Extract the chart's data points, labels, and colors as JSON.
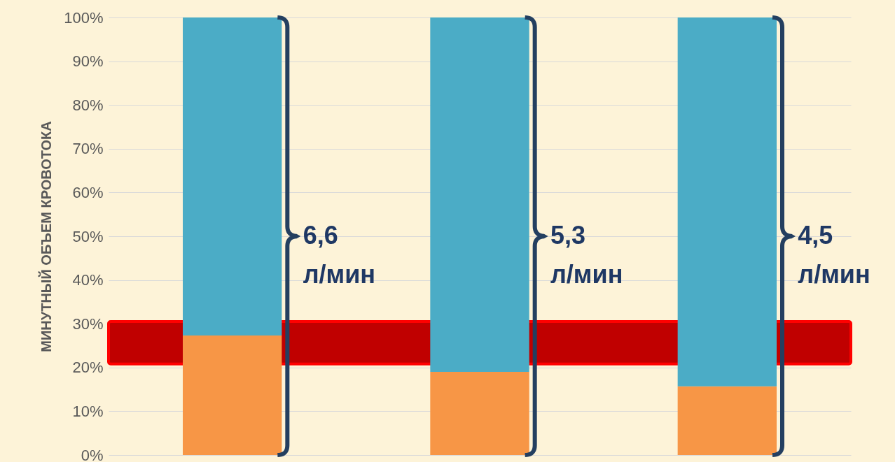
{
  "chart_data": {
    "type": "bar",
    "stacked": true,
    "ylabel": "МИНУТНЫЙ ОБЪЕМ КРОВОТОКА",
    "categories": [
      null,
      null,
      null
    ],
    "series": [
      {
        "color": "#f79646",
        "values": [
          27.3,
          19.0,
          15.7
        ]
      },
      {
        "color": "#4bacc6",
        "values": [
          72.7,
          81.0,
          84.3
        ]
      }
    ],
    "ylim": [
      0,
      100
    ],
    "yticks": [
      {
        "value": 0,
        "label": "0%"
      },
      {
        "value": 10,
        "label": "10%"
      },
      {
        "value": 20,
        "label": "20%"
      },
      {
        "value": 30,
        "label": "30%"
      },
      {
        "value": 40,
        "label": "40%"
      },
      {
        "value": 50,
        "label": "50%"
      },
      {
        "value": 60,
        "label": "60%"
      },
      {
        "value": 70,
        "label": "70%"
      },
      {
        "value": 80,
        "label": "80%"
      },
      {
        "value": 90,
        "label": "90%"
      },
      {
        "value": 100,
        "label": "100%"
      }
    ],
    "grid": "y",
    "tick_labels": "y",
    "legend": false,
    "bands": [
      {
        "axis": "y",
        "from": 20.8,
        "to": 30.5,
        "color": "#c00000"
      }
    ],
    "annotations": [
      "6,6 л/мин",
      "5,3 л/мин",
      "4,5 л/мин"
    ]
  }
}
